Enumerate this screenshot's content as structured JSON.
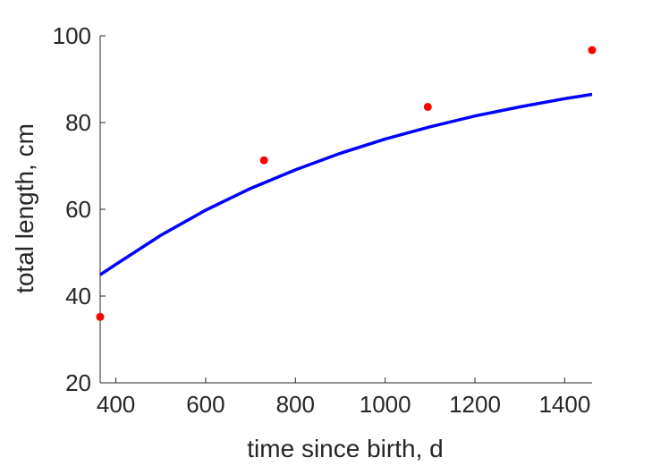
{
  "chart_data": {
    "type": "scatter",
    "xlabel": "time since birth, d",
    "ylabel": "total length, cm",
    "xlim": [
      365,
      1461
    ],
    "ylim": [
      20,
      100
    ],
    "xticks": [
      400,
      600,
      800,
      1000,
      1200,
      1400
    ],
    "yticks": [
      20,
      40,
      60,
      80,
      100
    ],
    "x_tick_labels": [
      "400",
      "600",
      "800",
      "1000",
      "1200",
      "1400"
    ],
    "y_tick_labels": [
      "20",
      "40",
      "60",
      "80",
      "100"
    ],
    "grid": false,
    "legend": "none",
    "series": [
      {
        "type": "scatter",
        "color": "#ff0000",
        "x": [
          365,
          730,
          1095,
          1461
        ],
        "y": [
          35.2,
          71.3,
          83.6,
          96.7
        ]
      },
      {
        "type": "line",
        "color": "#0000ff",
        "x": [
          365,
          400,
          500,
          600,
          700,
          800,
          900,
          1000,
          1100,
          1200,
          1300,
          1400,
          1461
        ],
        "y": [
          44.9,
          47.3,
          54.0,
          59.8,
          64.8,
          69.1,
          72.9,
          76.2,
          79.0,
          81.5,
          83.6,
          85.5,
          86.5
        ]
      }
    ]
  }
}
